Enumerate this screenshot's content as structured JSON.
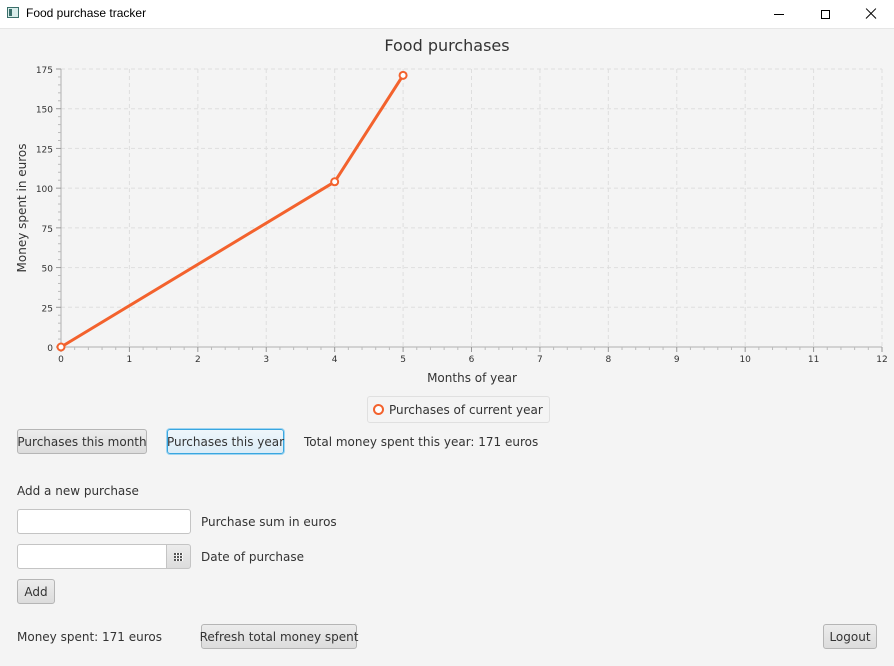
{
  "window": {
    "title": "Food purchase tracker",
    "icons": {
      "app": "app-window-icon",
      "minimize": "minimize-icon",
      "maximize": "maximize-icon",
      "close": "close-icon"
    }
  },
  "chart_data": {
    "type": "line",
    "title": "Food purchases",
    "xlabel": "Months of year",
    "ylabel": "Money spent in euros",
    "xlim": [
      0,
      12
    ],
    "ylim": [
      0,
      175
    ],
    "xticks": [
      0,
      1,
      2,
      3,
      4,
      5,
      6,
      7,
      8,
      9,
      10,
      11,
      12
    ],
    "yticks": [
      0,
      25,
      50,
      75,
      100,
      125,
      150,
      175
    ],
    "grid": true,
    "legend_position": "bottom",
    "series": [
      {
        "name": "Purchases of current year",
        "color": "#f3622d",
        "x": [
          0,
          4,
          5
        ],
        "y": [
          0,
          104,
          171
        ]
      }
    ]
  },
  "controls": {
    "purchases_month_label": "Purchases this month",
    "purchases_year_label": "Purchases this year",
    "total_year_text": "Total money spent this year: 171 euros"
  },
  "form": {
    "heading": "Add a new purchase",
    "sum_value": "",
    "sum_label": "Purchase sum in euros",
    "date_value": "",
    "date_label": "Date of purchase",
    "calendar_icon": "calendar-icon",
    "add_label": "Add"
  },
  "footer": {
    "money_spent_text": "Money spent: 171 euros",
    "refresh_label": "Refresh total money spent",
    "logout_label": "Logout"
  }
}
